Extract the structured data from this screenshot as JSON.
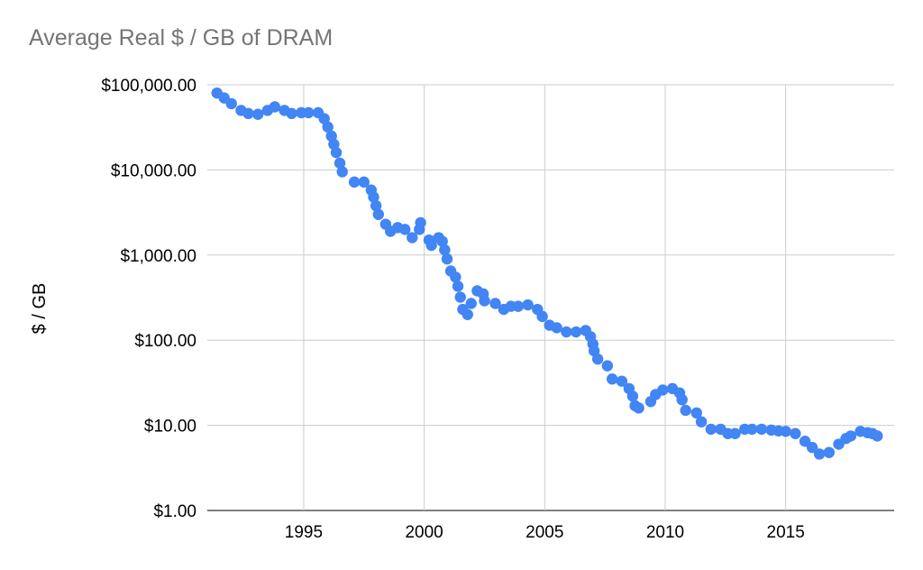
{
  "chart_data": {
    "type": "scatter",
    "title": "Average Real $ / GB of DRAM",
    "xlabel": "",
    "ylabel": "$ / GB",
    "y_scale": "log",
    "ylim": [
      1,
      100000
    ],
    "xlim": [
      1991,
      2019.5
    ],
    "y_ticks": [
      {
        "value": 1,
        "label": "$1.00"
      },
      {
        "value": 10,
        "label": "$10.00"
      },
      {
        "value": 100,
        "label": "$100.00"
      },
      {
        "value": 1000,
        "label": "$1,000.00"
      },
      {
        "value": 10000,
        "label": "$10,000.00"
      },
      {
        "value": 100000,
        "label": "$100,000.00"
      }
    ],
    "x_ticks": [
      {
        "value": 1995,
        "label": "1995"
      },
      {
        "value": 2000,
        "label": "2000"
      },
      {
        "value": 2005,
        "label": "2005"
      },
      {
        "value": 2010,
        "label": "2010"
      },
      {
        "value": 2015,
        "label": "2015"
      }
    ],
    "grid": true,
    "marker_color": "#4285f4",
    "points": [
      [
        1991.4,
        80000
      ],
      [
        1991.7,
        70000
      ],
      [
        1992.0,
        60000
      ],
      [
        1992.4,
        50000
      ],
      [
        1992.7,
        46000
      ],
      [
        1993.1,
        45000
      ],
      [
        1993.5,
        50000
      ],
      [
        1993.8,
        55000
      ],
      [
        1994.2,
        50000
      ],
      [
        1994.5,
        46000
      ],
      [
        1994.9,
        47000
      ],
      [
        1995.2,
        47000
      ],
      [
        1995.6,
        47000
      ],
      [
        1995.85,
        40000
      ],
      [
        1996.0,
        32000
      ],
      [
        1996.15,
        25000
      ],
      [
        1996.25,
        20000
      ],
      [
        1996.35,
        16000
      ],
      [
        1996.5,
        12000
      ],
      [
        1996.6,
        9500
      ],
      [
        1997.1,
        7200
      ],
      [
        1997.5,
        7200
      ],
      [
        1997.8,
        5800
      ],
      [
        1997.9,
        4800
      ],
      [
        1998.0,
        3800
      ],
      [
        1998.1,
        3000
      ],
      [
        1998.4,
        2300
      ],
      [
        1998.6,
        1900
      ],
      [
        1998.9,
        2100
      ],
      [
        1999.2,
        2000
      ],
      [
        1999.5,
        1600
      ],
      [
        1999.8,
        2000
      ],
      [
        1999.85,
        2400
      ],
      [
        2000.2,
        1500
      ],
      [
        2000.3,
        1300
      ],
      [
        2000.6,
        1600
      ],
      [
        2000.75,
        1450
      ],
      [
        2000.85,
        1150
      ],
      [
        2000.95,
        900
      ],
      [
        2001.1,
        650
      ],
      [
        2001.3,
        550
      ],
      [
        2001.4,
        430
      ],
      [
        2001.5,
        320
      ],
      [
        2001.6,
        230
      ],
      [
        2001.8,
        200
      ],
      [
        2001.95,
        270
      ],
      [
        2002.2,
        380
      ],
      [
        2002.45,
        350
      ],
      [
        2002.5,
        290
      ],
      [
        2002.95,
        270
      ],
      [
        2003.3,
        230
      ],
      [
        2003.6,
        250
      ],
      [
        2003.9,
        250
      ],
      [
        2004.3,
        260
      ],
      [
        2004.7,
        230
      ],
      [
        2004.9,
        190
      ],
      [
        2005.2,
        150
      ],
      [
        2005.5,
        140
      ],
      [
        2005.9,
        125
      ],
      [
        2006.3,
        125
      ],
      [
        2006.7,
        130
      ],
      [
        2006.9,
        110
      ],
      [
        2007.0,
        90
      ],
      [
        2007.05,
        75
      ],
      [
        2007.2,
        60
      ],
      [
        2007.6,
        50
      ],
      [
        2007.8,
        35
      ],
      [
        2008.2,
        33
      ],
      [
        2008.5,
        27
      ],
      [
        2008.65,
        22
      ],
      [
        2008.75,
        17
      ],
      [
        2008.9,
        16
      ],
      [
        2009.4,
        19
      ],
      [
        2009.6,
        23
      ],
      [
        2009.9,
        26
      ],
      [
        2010.3,
        27
      ],
      [
        2010.6,
        24
      ],
      [
        2010.7,
        20
      ],
      [
        2010.85,
        15
      ],
      [
        2011.3,
        14
      ],
      [
        2011.5,
        11
      ],
      [
        2011.9,
        9
      ],
      [
        2012.3,
        9
      ],
      [
        2012.6,
        8
      ],
      [
        2012.9,
        8
      ],
      [
        2013.3,
        9
      ],
      [
        2013.6,
        9
      ],
      [
        2014.0,
        9
      ],
      [
        2014.4,
        8.8
      ],
      [
        2014.7,
        8.6
      ],
      [
        2015.0,
        8.5
      ],
      [
        2015.4,
        8
      ],
      [
        2015.8,
        6.5
      ],
      [
        2016.1,
        5.5
      ],
      [
        2016.4,
        4.6
      ],
      [
        2016.8,
        4.8
      ],
      [
        2017.2,
        6
      ],
      [
        2017.5,
        7
      ],
      [
        2017.7,
        7.5
      ],
      [
        2018.1,
        8.5
      ],
      [
        2018.4,
        8.2
      ],
      [
        2018.6,
        8
      ],
      [
        2018.8,
        7.5
      ]
    ]
  }
}
